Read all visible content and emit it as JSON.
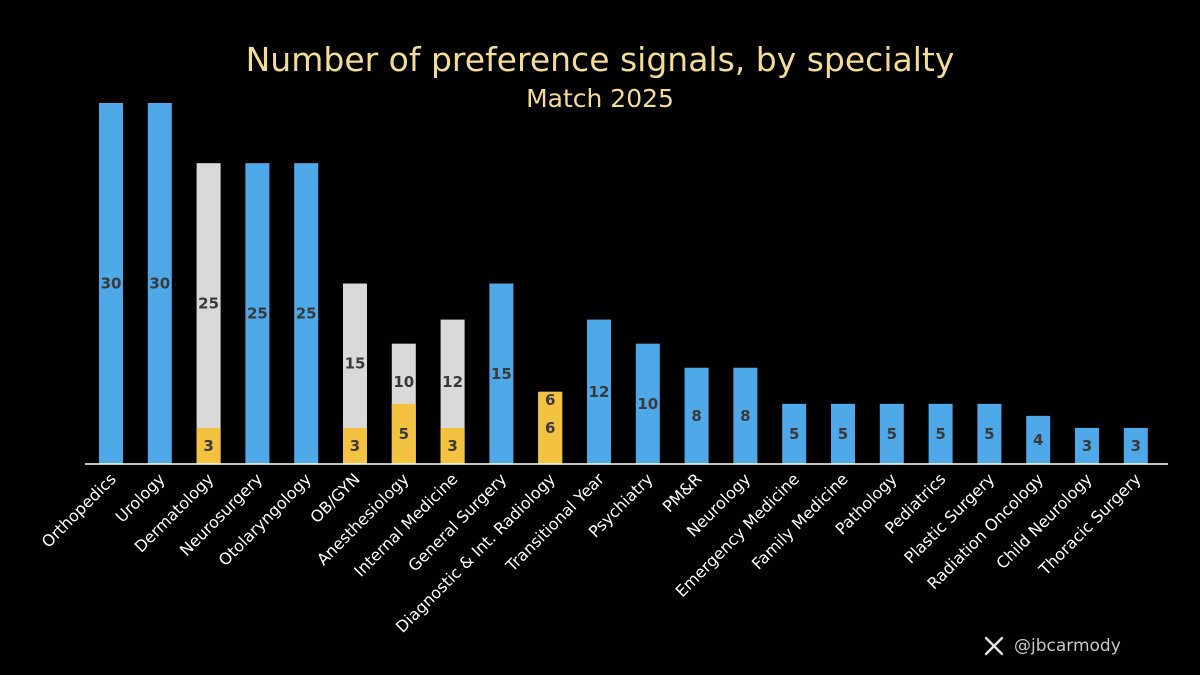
{
  "chart_data": {
    "type": "bar",
    "title": "Number of preference signals, by specialty",
    "subtitle": "Match 2025",
    "ylim": [
      0,
      30
    ],
    "grid": false,
    "legend": "none",
    "colors": {
      "single": "#4fa8e8",
      "upper": "#d9d9d9",
      "lower": "#f2c240",
      "background": "#000000",
      "title": "#f3dc96"
    },
    "categories": [
      "Orthopedics",
      "Urology",
      "Dermatology",
      "Neurosurgery",
      "Otolaryngology",
      "OB/GYN",
      "Anesthesiology",
      "Internal Medicine",
      "General Surgery",
      "Diagnostic & Int. Radiology",
      "Transitional Year",
      "Psychiatry",
      "PM&R",
      "Neurology",
      "Emergency Medicine",
      "Family Medicine",
      "Pathology",
      "Pediatrics",
      "Plastic Surgery",
      "Radiation Oncology",
      "Child Neurology",
      "Thoracic Surgery"
    ],
    "bars": [
      {
        "single": 30
      },
      {
        "single": 30
      },
      {
        "upper": 25,
        "lower": 3
      },
      {
        "single": 25
      },
      {
        "single": 25
      },
      {
        "upper": 15,
        "lower": 3
      },
      {
        "upper": 10,
        "lower": 5
      },
      {
        "upper": 12,
        "lower": 3
      },
      {
        "single": 15
      },
      {
        "upper": 6,
        "lower": 6
      },
      {
        "single": 12
      },
      {
        "single": 10
      },
      {
        "single": 8
      },
      {
        "single": 8
      },
      {
        "single": 5
      },
      {
        "single": 5
      },
      {
        "single": 5
      },
      {
        "single": 5
      },
      {
        "single": 5
      },
      {
        "single": 4
      },
      {
        "single": 3
      },
      {
        "single": 3
      }
    ]
  },
  "credit": {
    "handle": "@jbcarmody",
    "icon": "x-logo-icon"
  }
}
